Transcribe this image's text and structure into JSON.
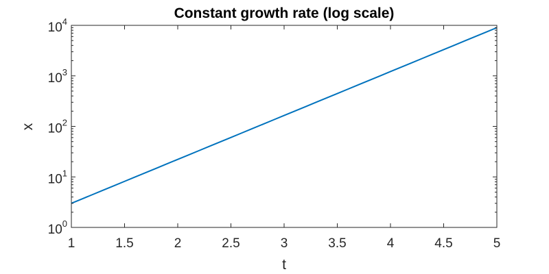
{
  "chart_data": {
    "type": "line",
    "title": "Constant growth rate (log scale)",
    "xlabel": "t",
    "ylabel": "x",
    "xlim": [
      1,
      5
    ],
    "ylim": [
      1,
      10000
    ],
    "yscale": "log",
    "grid": false,
    "box": true,
    "x_ticks": [
      1,
      1.5,
      2,
      2.5,
      3,
      3.5,
      4,
      4.5,
      5
    ],
    "x_tick_labels": [
      "1",
      "1.5",
      "2",
      "2.5",
      "3",
      "3.5",
      "4",
      "4.5",
      "5"
    ],
    "y_ticks": [
      1,
      10,
      100,
      1000,
      10000
    ],
    "y_tick_labels": [
      {
        "base": "10",
        "exp": "0"
      },
      {
        "base": "10",
        "exp": "1"
      },
      {
        "base": "10",
        "exp": "2"
      },
      {
        "base": "10",
        "exp": "3"
      },
      {
        "base": "10",
        "exp": "4"
      }
    ],
    "series": [
      {
        "color": "#0072BD",
        "x": [
          1,
          5
        ],
        "y": [
          3,
          9000
        ]
      }
    ]
  }
}
